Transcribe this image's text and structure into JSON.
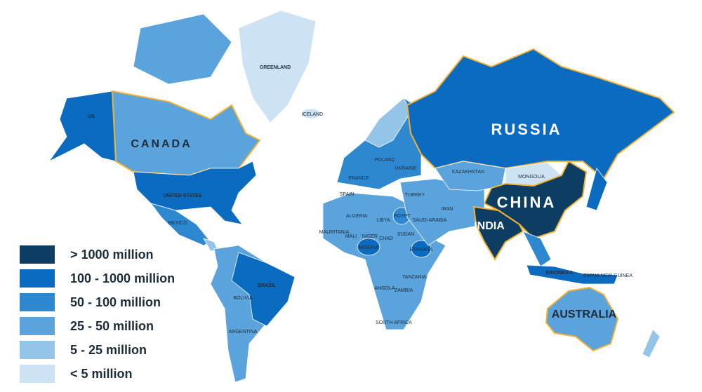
{
  "labels": [
    "GREENLAND",
    "ICELAND",
    "US",
    "CANADA",
    "UNITED STATES",
    "MEXICO",
    "BRAZIL",
    "BOLIVIA",
    "ARGENTINA",
    "RUSSIA",
    "KAZAKHSTAN",
    "MONGOLIA",
    "CHINA",
    "INDIA",
    "INDONESIA",
    "AUSTRALIA",
    "ALGERIA",
    "LIBYA",
    "EGYPT",
    "SUDAN",
    "MAURITANIA",
    "MALI",
    "NIGER",
    "CHAD",
    "NIGERIA",
    "ETHIOPIA",
    "ANGOLA",
    "ZAMBIA",
    "TANZANIA",
    "SOUTH AFRICA",
    "TURKEY",
    "IRAN",
    "SAUDI ARABIA",
    "SPAIN",
    "FRANCE",
    "POLAND",
    "UKRAINE",
    "PAPUA NEW GUINEA"
  ],
  "legend": [
    {
      "label": "> 1000 million",
      "color": "#0d3d63"
    },
    {
      "label": "100 - 1000 million",
      "color": "#0a6bc0"
    },
    {
      "label": "50 - 100 million",
      "color": "#2e88d0"
    },
    {
      "label": "25 - 50 million",
      "color": "#5ba3dc"
    },
    {
      "label": "5 - 25 million",
      "color": "#94c4e8"
    },
    {
      "label": "< 5 million",
      "color": "#cde3f3"
    }
  ]
}
